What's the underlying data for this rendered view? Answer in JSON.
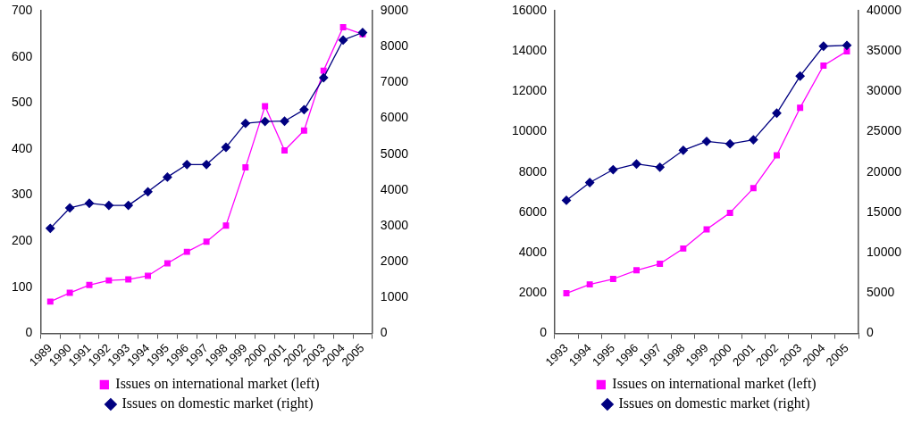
{
  "chart_data": [
    {
      "type": "line",
      "categories": [
        "1989",
        "1990",
        "1991",
        "1992",
        "1993",
        "1994",
        "1995",
        "1996",
        "1997",
        "1998",
        "1999",
        "2000",
        "2001",
        "2002",
        "2003",
        "2004",
        "2005"
      ],
      "series": [
        {
          "name": "Issues on international market (left)",
          "color": "#ff00ff",
          "marker": "square",
          "values": [
            69,
            88,
            105,
            115,
            117,
            125,
            152,
            177,
            199,
            234,
            360,
            493,
            397,
            440,
            570,
            664,
            649
          ]
        },
        {
          "name": "Issues on domestic market (right)",
          "color": "#000080",
          "marker": "diamond",
          "axis": "y2",
          "values": [
            2930,
            3500,
            3630,
            3570,
            3570,
            3950,
            4360,
            4710,
            4710,
            5190,
            5860,
            5910,
            5920,
            6240,
            7130,
            8180,
            8390
          ]
        }
      ],
      "ylim": [
        0,
        700
      ],
      "yticks": [
        0,
        100,
        200,
        300,
        400,
        500,
        600,
        700
      ],
      "y2lim": [
        0,
        9000
      ],
      "y2ticks": [
        0,
        1000,
        2000,
        3000,
        4000,
        5000,
        6000,
        7000,
        8000,
        9000
      ],
      "grid": false,
      "legend": "bottom",
      "line_style": "solid"
    },
    {
      "type": "line",
      "categories": [
        "1993",
        "1994",
        "1995",
        "1996",
        "1997",
        "1998",
        "1999",
        "2000",
        "2001",
        "2002",
        "2003",
        "2004",
        "2005"
      ],
      "series": [
        {
          "name": "Issues on international market (left)",
          "color": "#ff00ff",
          "marker": "square",
          "values": [
            1990,
            2430,
            2700,
            3130,
            3450,
            4210,
            5160,
            5980,
            7200,
            8830,
            11190,
            13280,
            13990
          ]
        },
        {
          "name": "Issues on domestic market (right)",
          "color": "#000080",
          "marker": "diamond",
          "axis": "y2",
          "values": [
            16500,
            18700,
            20300,
            21000,
            20600,
            22700,
            23800,
            23500,
            24000,
            27300,
            31900,
            35600,
            35700
          ]
        }
      ],
      "ylim": [
        0,
        16000
      ],
      "yticks": [
        0,
        2000,
        4000,
        6000,
        8000,
        10000,
        12000,
        14000,
        16000
      ],
      "y2lim": [
        0,
        40000
      ],
      "y2ticks": [
        0,
        5000,
        10000,
        15000,
        20000,
        25000,
        30000,
        35000,
        40000
      ],
      "grid": false,
      "legend": "bottom",
      "line_style": "solid"
    }
  ]
}
